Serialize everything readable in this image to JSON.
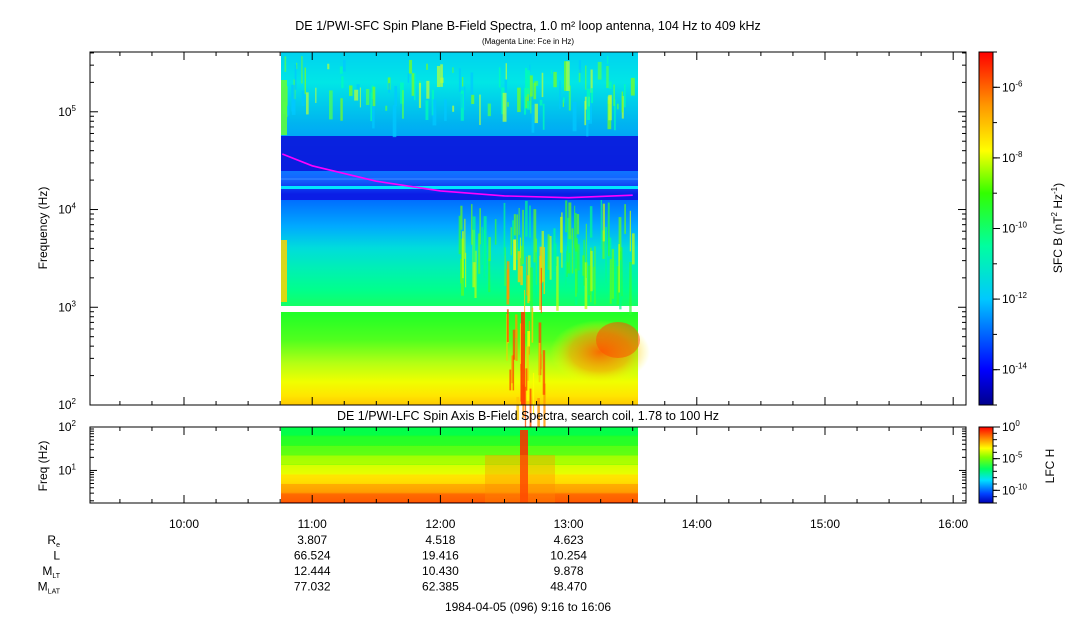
{
  "chart_data": [
    {
      "type": "heatmap",
      "title": "DE 1/PWI-SFC  Spin Plane B-Field Spectra, 1.0 m² loop antenna, 104 Hz to 409 kHz",
      "subtitle": "(Magenta Line: Fce in Hz)",
      "ylabel": "Frequency (Hz)",
      "yscale": "log",
      "ylim": [
        100,
        409000
      ],
      "yticks": [
        {
          "value": 100,
          "label": "10",
          "exp": "2"
        },
        {
          "value": 1000,
          "label": "10",
          "exp": "3"
        },
        {
          "value": 10000,
          "label": "10",
          "exp": "4"
        },
        {
          "value": 100000,
          "label": "10",
          "exp": "5"
        }
      ],
      "data_time_range": [
        "10:46",
        "13:33"
      ],
      "fce_line": {
        "color": "#ff00ff",
        "x": [
          "10:46",
          "11:00",
          "11:30",
          "12:00",
          "12:30",
          "13:00",
          "13:30"
        ],
        "y": [
          37000,
          28000,
          19500,
          15500,
          13800,
          13200,
          14000
        ]
      },
      "colorbar": {
        "label": "SFC B (nT",
        "label_sup1": "2",
        "label_mid": " Hz",
        "label_sup2": "-1",
        "label_end": ")",
        "scale": "log",
        "range": [
          1e-15,
          1e-05
        ],
        "ticks": [
          {
            "value": 1e-06,
            "label": "10",
            "exp": "-6"
          },
          {
            "value": 1e-08,
            "label": "10",
            "exp": "-8"
          },
          {
            "value": 1e-10,
            "label": "10",
            "exp": "-10"
          },
          {
            "value": 1e-12,
            "label": "10",
            "exp": "-12"
          },
          {
            "value": 1e-14,
            "label": "10",
            "exp": "-14"
          }
        ]
      }
    },
    {
      "type": "heatmap",
      "title": "DE 1/PWI-LFC  Spin Axis B-Field Spectra, search coil, 1.78 to 100 Hz",
      "ylabel": "Freq (Hz)",
      "yscale": "log",
      "ylim": [
        1.78,
        100
      ],
      "yticks": [
        {
          "value": 10,
          "label": "10",
          "exp": "1"
        },
        {
          "value": 100,
          "label": "10",
          "exp": "2"
        }
      ],
      "data_time_range": [
        "10:46",
        "13:33"
      ],
      "colorbar": {
        "label": "LFC H",
        "scale": "log",
        "range": [
          1e-12,
          1
        ],
        "ticks": [
          {
            "value": 1,
            "label": "10",
            "exp": "0"
          },
          {
            "value": 1e-05,
            "label": "10",
            "exp": "-5"
          },
          {
            "value": 1e-10,
            "label": "10",
            "exp": "-10"
          }
        ]
      }
    }
  ],
  "time_axis": {
    "start": "9:16",
    "end": "16:06",
    "ticks": [
      "10:00",
      "11:00",
      "12:00",
      "13:00",
      "14:00",
      "15:00",
      "16:00"
    ]
  },
  "ephemeris": {
    "rows": [
      {
        "label": "R",
        "sub": "e",
        "values": [
          "3.807",
          "4.518",
          "4.623"
        ]
      },
      {
        "label": "L",
        "sub": "",
        "values": [
          "66.524",
          "19.416",
          "10.254"
        ]
      },
      {
        "label": "M",
        "sub": "LT",
        "values": [
          "12.444",
          "10.430",
          "9.878"
        ]
      },
      {
        "label": "M",
        "sub": "LAT",
        "values": [
          "77.032",
          "62.385",
          "48.470"
        ]
      }
    ],
    "times": [
      "11:00",
      "12:00",
      "13:00"
    ]
  },
  "footer": "1984-04-05 (096) 9:16 to 16:06"
}
